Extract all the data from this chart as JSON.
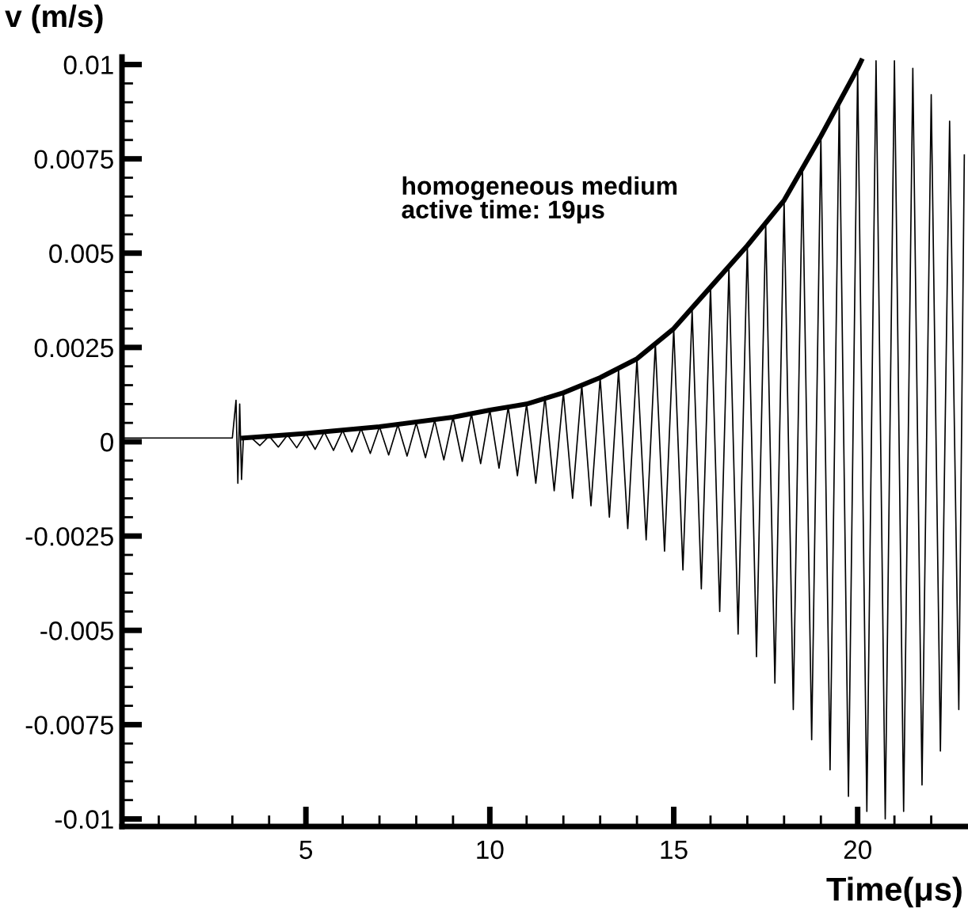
{
  "chart_data": {
    "type": "line",
    "xlabel": "Time(μs)",
    "ylabel": "v (m/s)",
    "annotations": [
      "homogeneous medium\nactive time: 19μs"
    ],
    "xlim": [
      0,
      23
    ],
    "ylim": [
      -0.0102,
      0.0102
    ],
    "xticks": [
      {
        "value": 1,
        "label": null
      },
      {
        "value": 2,
        "label": null
      },
      {
        "value": 3,
        "label": null
      },
      {
        "value": 4,
        "label": null
      },
      5,
      {
        "value": 6,
        "label": null
      },
      {
        "value": 7,
        "label": null
      },
      {
        "value": 8,
        "label": null
      },
      {
        "value": 9,
        "label": null
      },
      10,
      {
        "value": 11,
        "label": null
      },
      {
        "value": 12,
        "label": null
      },
      {
        "value": 13,
        "label": null
      },
      {
        "value": 14,
        "label": null
      },
      15,
      {
        "value": 16,
        "label": null
      },
      {
        "value": 17,
        "label": null
      },
      {
        "value": 18,
        "label": null
      },
      {
        "value": 19,
        "label": null
      },
      20,
      {
        "value": 21,
        "label": null
      },
      {
        "value": 22,
        "label": null
      }
    ],
    "yticks": [
      -0.01,
      {
        "value": -0.0095,
        "label": null
      },
      {
        "value": -0.009,
        "label": null
      },
      {
        "value": -0.0085,
        "label": null
      },
      {
        "value": -0.008,
        "label": null
      },
      -0.0075,
      {
        "value": -0.007,
        "label": null
      },
      {
        "value": -0.0065,
        "label": null
      },
      {
        "value": -0.006,
        "label": null
      },
      {
        "value": -0.0055,
        "label": null
      },
      -0.005,
      {
        "value": -0.0045,
        "label": null
      },
      {
        "value": -0.004,
        "label": null
      },
      {
        "value": -0.0035,
        "label": null
      },
      {
        "value": -0.003,
        "label": null
      },
      -0.0025,
      {
        "value": -0.002,
        "label": null
      },
      {
        "value": -0.0015,
        "label": null
      },
      {
        "value": -0.001,
        "label": null
      },
      {
        "value": -0.0005,
        "label": null
      },
      0,
      {
        "value": 0.0005,
        "label": null
      },
      {
        "value": 0.001,
        "label": null
      },
      {
        "value": 0.0015,
        "label": null
      },
      {
        "value": 0.002,
        "label": null
      },
      0.0025,
      {
        "value": 0.003,
        "label": null
      },
      {
        "value": 0.0035,
        "label": null
      },
      {
        "value": 0.004,
        "label": null
      },
      {
        "value": 0.0045,
        "label": null
      },
      0.005,
      {
        "value": 0.0055,
        "label": null
      },
      {
        "value": 0.006,
        "label": null
      },
      {
        "value": 0.0065,
        "label": null
      },
      {
        "value": 0.007,
        "label": null
      },
      0.0075,
      {
        "value": 0.008,
        "label": null
      },
      {
        "value": 0.0085,
        "label": null
      },
      {
        "value": 0.009,
        "label": null
      },
      {
        "value": 0.0095,
        "label": null
      },
      0.01
    ],
    "grid": false,
    "marker": "none",
    "line_style": "solid",
    "series": [
      {
        "color": "#000000",
        "x": [
          0,
          1,
          2,
          3,
          3.1,
          3.15,
          3.2,
          3.25,
          3.3,
          3.5,
          3.75,
          4,
          4.25,
          4.5,
          4.75,
          5,
          5.25,
          5.5,
          5.75,
          6,
          6.25,
          6.5,
          6.75,
          7,
          7.25,
          7.5,
          7.75,
          8,
          8.25,
          8.5,
          8.75,
          9,
          9.25,
          9.5,
          9.75,
          10,
          10.25,
          10.5,
          10.75,
          11,
          11.25,
          11.5,
          11.75,
          12,
          12.25,
          12.5,
          12.75,
          13,
          13.25,
          13.5,
          13.75,
          14,
          14.25,
          14.5,
          14.75,
          15,
          15.25,
          15.5,
          15.75,
          16,
          16.25,
          16.5,
          16.75,
          17,
          17.25,
          17.5,
          17.75,
          18,
          18.25,
          18.5,
          18.75,
          19,
          19.25,
          19.5,
          19.75,
          20,
          20.25,
          20.5,
          20.75,
          21,
          21.25,
          21.5,
          21.75,
          22,
          22.25,
          22.5,
          22.75,
          22.9
        ],
        "values": [
          0.0001,
          0.0001,
          0.0001,
          0.0001,
          0.0011,
          -0.0011,
          0.001,
          -0.001,
          0.0001,
          0.00012,
          -0.0001,
          0.00015,
          -0.00014,
          0.00018,
          -0.00016,
          0.00022,
          -0.0002,
          0.00026,
          -0.00023,
          0.0003,
          -0.00027,
          0.00035,
          -0.00031,
          0.0004,
          -0.00035,
          0.00045,
          -0.00038,
          0.0005,
          -0.00042,
          0.00057,
          -0.00048,
          0.00065,
          -0.00052,
          0.00074,
          -0.00058,
          0.00084,
          -0.0007,
          0.00092,
          -0.0009,
          0.001,
          -0.0011,
          0.0012,
          -0.0013,
          0.0013,
          -0.0015,
          0.0015,
          -0.0017,
          0.0017,
          -0.002,
          0.0019,
          -0.0023,
          0.0022,
          -0.0026,
          0.0026,
          -0.0029,
          0.003,
          -0.0034,
          0.0035,
          -0.0039,
          0.0041,
          -0.0045,
          0.0046,
          -0.0051,
          0.0052,
          -0.0057,
          0.0058,
          -0.0064,
          0.0064,
          -0.0071,
          0.0072,
          -0.0079,
          0.0081,
          -0.0087,
          0.009,
          -0.0094,
          0.0099,
          -0.0098,
          0.0101,
          -0.01,
          0.0101,
          -0.0098,
          0.0099,
          -0.0091,
          0.0092,
          -0.0082,
          0.0085,
          -0.0071,
          0.0076
        ]
      },
      {
        "color": "#000000",
        "x": [
          3.3,
          5,
          7,
          9,
          10,
          11,
          12,
          13,
          14,
          15,
          16,
          17,
          18,
          19,
          20,
          20.1
        ],
        "values": [
          0.0001,
          0.00022,
          0.0004,
          0.00065,
          0.00084,
          0.001,
          0.0013,
          0.0017,
          0.0022,
          0.003,
          0.0041,
          0.0052,
          0.0064,
          0.0081,
          0.0099,
          0.0101
        ]
      }
    ]
  }
}
